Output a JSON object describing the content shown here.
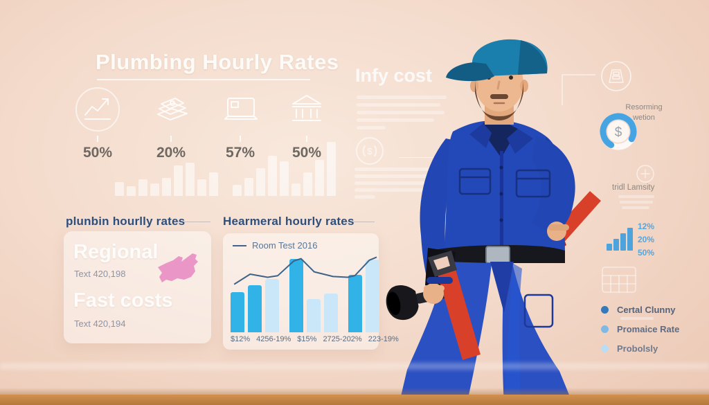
{
  "header": {
    "title": "Plumbing Hourly Rates"
  },
  "stats": {
    "items": [
      {
        "icon": "trend-chart-icon",
        "value": "50%"
      },
      {
        "icon": "money-stack-icon",
        "value": "20%"
      },
      {
        "icon": "laptop-icon",
        "value": "57%"
      },
      {
        "icon": "bank-icon",
        "value": "50%"
      }
    ]
  },
  "info_section": {
    "title": "Infy cost"
  },
  "regional_section": {
    "heading": "plunbin hourlly rates",
    "item1_title": "Regional",
    "item1_value": "Text 420,198",
    "item2_title": "Fast costs",
    "item2_value": "Text 420,194"
  },
  "chart_card": {
    "heading": "Hearmeral hourly rates",
    "legend": "Room Test 2016"
  },
  "right_panel": {
    "caption1_line1": "Resorming",
    "caption1_line2": "wetion",
    "donut_symbol": "$",
    "caption2": "tridl Lamsity",
    "mini_values": [
      "12%",
      "20%",
      "50%"
    ],
    "legend_items": [
      {
        "label": "Certal Clunny"
      },
      {
        "label": "Promaice Rate"
      },
      {
        "label": "Probolsly"
      }
    ]
  },
  "decor": {
    "group1": [
      20,
      14,
      24,
      18,
      26,
      44,
      48,
      24,
      34
    ],
    "group2": [
      16,
      26,
      40,
      58,
      50,
      18,
      34,
      52,
      78
    ],
    "mini": [
      10,
      17,
      25,
      33
    ]
  },
  "chart_data": [
    {
      "type": "bar",
      "title": "Hearmeral hourly rates",
      "legend": [
        "Room Test 2016"
      ],
      "legend_position": "top-left",
      "x_labels": [
        "$12%",
        "4256-19%",
        "$15%",
        "2725-202%",
        "223-19%"
      ],
      "bars": [
        {
          "value": 55,
          "tone": "dark"
        },
        {
          "value": 64,
          "tone": "dark"
        },
        {
          "value": 73,
          "tone": "light"
        },
        {
          "value": 100,
          "tone": "dark",
          "sp": true
        },
        {
          "value": 45,
          "tone": "light"
        },
        {
          "value": 53,
          "tone": "light"
        },
        {
          "value": 78,
          "tone": "dark",
          "sp": true
        },
        {
          "value": 99,
          "tone": "light"
        }
      ],
      "line": [
        [
          0.02,
          0.62
        ],
        [
          0.13,
          0.75
        ],
        [
          0.25,
          0.71
        ],
        [
          0.32,
          0.73
        ],
        [
          0.43,
          0.92
        ],
        [
          0.48,
          0.95
        ],
        [
          0.57,
          0.78
        ],
        [
          0.7,
          0.72
        ],
        [
          0.8,
          0.71
        ],
        [
          0.85,
          0.73
        ],
        [
          0.95,
          0.93
        ],
        [
          1.0,
          0.97
        ]
      ],
      "ylim": [
        0,
        100
      ],
      "grid": false
    },
    {
      "type": "bar",
      "title": "stat icons row",
      "categories": [
        "trend",
        "money",
        "laptop",
        "bank"
      ],
      "values": [
        50,
        20,
        57,
        50
      ],
      "unit": "%"
    },
    {
      "type": "bar",
      "title": "mini bar icon",
      "categories": [
        "a",
        "b",
        "c"
      ],
      "values": [
        12,
        20,
        50
      ],
      "unit": "%"
    }
  ]
}
